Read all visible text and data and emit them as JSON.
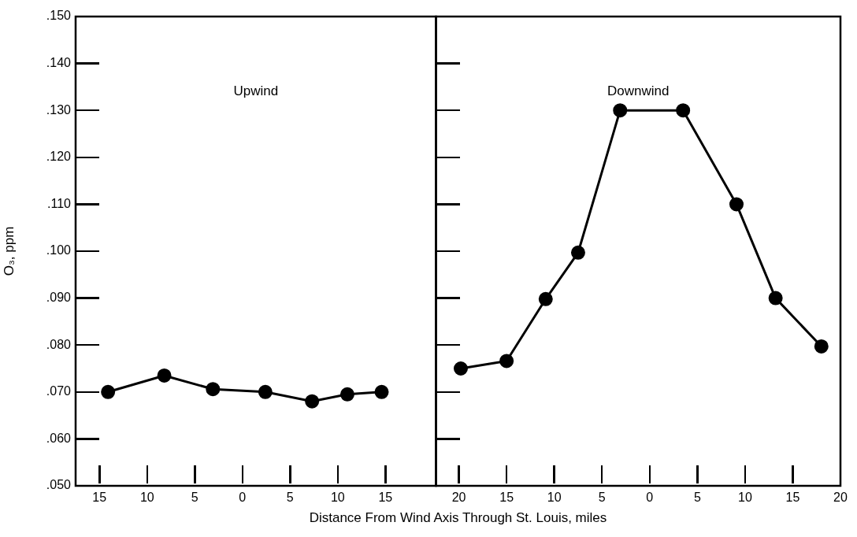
{
  "chart_data": [
    {
      "type": "line",
      "ylabel": "O₃, ppm",
      "xlabel": "Distance From Wind Axis Through St. Louis, miles",
      "annotations": [
        "Upwind"
      ],
      "marker": "circle",
      "line_style": "solid",
      "series": [
        {
          "color": "#000000",
          "x": [
            -14.1,
            -8.2,
            -3.1,
            2.4,
            7.3,
            11.0,
            14.6
          ],
          "values": [
            0.07,
            0.0735,
            0.0706,
            0.07,
            0.068,
            0.0695,
            0.07
          ]
        }
      ],
      "xlim": [
        -17.5,
        20.3
      ],
      "xticks": [
        {
          "value": -15,
          "label": "15"
        },
        {
          "value": -10,
          "label": "10"
        },
        {
          "value": -5,
          "label": "5"
        },
        0,
        5,
        10,
        15
      ],
      "ylim": [
        0.05,
        0.15
      ],
      "yticks": [
        {
          "value": 0.05,
          "label": ".050"
        },
        {
          "value": 0.06,
          "label": ".060"
        },
        {
          "value": 0.07,
          "label": ".070"
        },
        {
          "value": 0.08,
          "label": ".080"
        },
        {
          "value": 0.09,
          "label": ".090"
        },
        {
          "value": 0.1,
          "label": ".100"
        },
        {
          "value": 0.11,
          "label": ".110"
        },
        {
          "value": 0.12,
          "label": ".120"
        },
        {
          "value": 0.13,
          "label": ".130"
        },
        {
          "value": 0.14,
          "label": ".140"
        },
        {
          "value": 0.15,
          "label": ".150"
        }
      ]
    },
    {
      "type": "line",
      "annotations": [
        "Downwind"
      ],
      "marker": "circle",
      "line_style": "solid",
      "tick_labels": "x",
      "series": [
        {
          "color": "#000000",
          "x": [
            -19.8,
            -15.0,
            -10.9,
            -7.5,
            -3.1,
            3.5,
            9.1,
            13.2,
            18.0
          ],
          "values": [
            0.075,
            0.0766,
            0.0898,
            0.0997,
            0.13,
            0.13,
            0.11,
            0.09,
            0.0797
          ]
        }
      ],
      "xlim": [
        -22.4,
        20
      ],
      "xticks": [
        {
          "value": -20,
          "label": "20"
        },
        {
          "value": -15,
          "label": "15"
        },
        {
          "value": -10,
          "label": "10"
        },
        {
          "value": -5,
          "label": "5"
        },
        0,
        5,
        10,
        15,
        20
      ],
      "ylim": [
        0.05,
        0.15
      ],
      "yticks": [
        {
          "value": 0.05,
          "label": null
        },
        {
          "value": 0.06,
          "label": null
        },
        {
          "value": 0.07,
          "label": null
        },
        {
          "value": 0.08,
          "label": null
        },
        {
          "value": 0.09,
          "label": null
        },
        {
          "value": 0.1,
          "label": null
        },
        {
          "value": 0.11,
          "label": null
        },
        {
          "value": 0.12,
          "label": null
        },
        {
          "value": 0.13,
          "label": null
        },
        {
          "value": 0.14,
          "label": null
        },
        {
          "value": 0.15,
          "label": null
        }
      ]
    }
  ]
}
